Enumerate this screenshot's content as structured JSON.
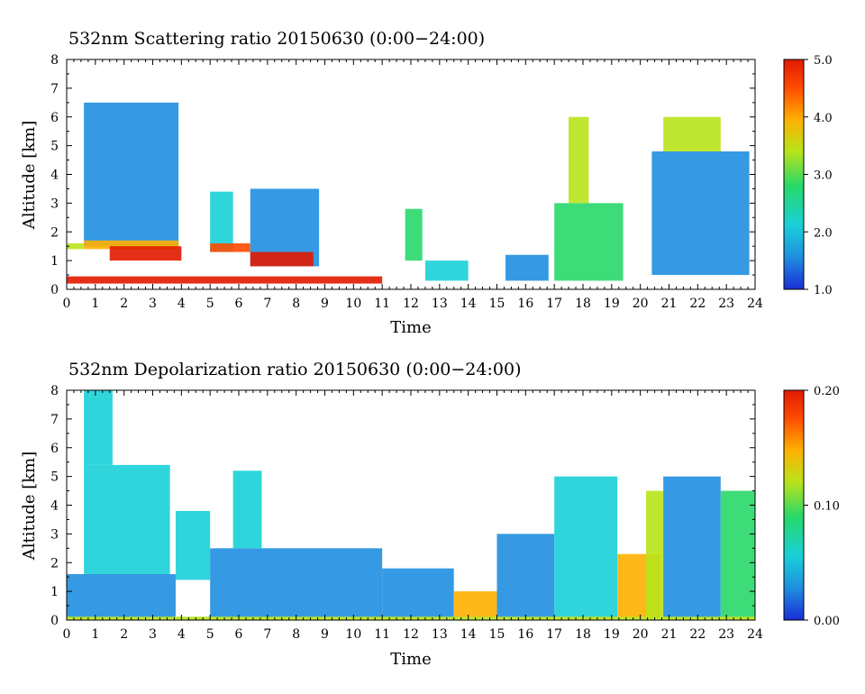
{
  "charts": [
    {
      "id": "scattering",
      "title": "532nm Scattering ratio  20150630 (0:00−24:00)",
      "xlabel": "Time",
      "ylabel": "Altitude [km]",
      "colorbar_ticks": [
        "1.0",
        "2.0",
        "3.0",
        "4.0",
        "5.0"
      ],
      "x_ticks": [
        "0",
        "1",
        "2",
        "3",
        "4",
        "5",
        "6",
        "7",
        "8",
        "9",
        "10",
        "11",
        "12",
        "13",
        "14",
        "15",
        "16",
        "17",
        "18",
        "19",
        "20",
        "21",
        "22",
        "23",
        "24"
      ],
      "y_ticks": [
        "0",
        "1",
        "2",
        "3",
        "4",
        "5",
        "6",
        "7",
        "8"
      ]
    },
    {
      "id": "depolarization",
      "title": "532nm Depolarization ratio  20150630 (0:00−24:00)",
      "xlabel": "Time",
      "ylabel": "Altitude [km]",
      "colorbar_ticks": [
        "0.00",
        "0.10",
        "0.20"
      ],
      "x_ticks": [
        "0",
        "1",
        "2",
        "3",
        "4",
        "5",
        "6",
        "7",
        "8",
        "9",
        "10",
        "11",
        "12",
        "13",
        "14",
        "15",
        "16",
        "17",
        "18",
        "19",
        "20",
        "21",
        "22",
        "23",
        "24"
      ],
      "y_ticks": [
        "0",
        "1",
        "2",
        "3",
        "4",
        "5",
        "6",
        "7",
        "8"
      ]
    }
  ],
  "chart_data": [
    {
      "type": "heatmap",
      "title": "532nm Scattering ratio  20150630 (0:00−24:00)",
      "xlabel": "Time",
      "ylabel": "Altitude [km]",
      "xlim": [
        0,
        24
      ],
      "ylim": [
        0,
        8
      ],
      "colorbar": {
        "min": 1.0,
        "max": 5.0,
        "ticks": [
          1.0,
          2.0,
          3.0,
          4.0,
          5.0
        ]
      },
      "colormap": [
        "#1a2ed6",
        "#1f8fe0",
        "#19d0d8",
        "#28d86a",
        "#b8e31a",
        "#ffb000",
        "#ff4a00",
        "#e21a00"
      ],
      "regions": [
        {
          "t": [
            0.0,
            0.6
          ],
          "z": [
            1.4,
            1.6
          ],
          "value": 3.2
        },
        {
          "t": [
            0.6,
            3.9
          ],
          "z": [
            1.5,
            6.5
          ],
          "value": 1.6
        },
        {
          "t": [
            0.6,
            3.9
          ],
          "z": [
            1.4,
            1.7
          ],
          "value": 3.6
        },
        {
          "t": [
            1.5,
            4.0
          ],
          "z": [
            1.0,
            1.5
          ],
          "value": 4.8
        },
        {
          "t": [
            0.0,
            11.0
          ],
          "z": [
            0.2,
            0.45
          ],
          "value": 4.8
        },
        {
          "t": [
            5.0,
            5.8
          ],
          "z": [
            1.3,
            3.4
          ],
          "value": 2.0
        },
        {
          "t": [
            5.0,
            6.4
          ],
          "z": [
            1.3,
            1.6
          ],
          "value": 4.6
        },
        {
          "t": [
            6.4,
            8.8
          ],
          "z": [
            0.8,
            3.5
          ],
          "value": 1.8
        },
        {
          "t": [
            6.4,
            8.6
          ],
          "z": [
            0.8,
            1.3
          ],
          "value": 4.8
        },
        {
          "t": [
            11.8,
            12.4
          ],
          "z": [
            1.0,
            2.8
          ],
          "value": 2.6
        },
        {
          "t": [
            12.5,
            14.0
          ],
          "z": [
            0.3,
            1.0
          ],
          "value": 2.4
        },
        {
          "t": [
            15.3,
            16.8
          ],
          "z": [
            0.3,
            1.2
          ],
          "value": 1.5
        },
        {
          "t": [
            17.0,
            19.4
          ],
          "z": [
            0.3,
            3.0
          ],
          "value": 2.5
        },
        {
          "t": [
            17.5,
            18.2
          ],
          "z": [
            3.0,
            6.0
          ],
          "value": 3.5
        },
        {
          "t": [
            20.4,
            23.8
          ],
          "z": [
            0.5,
            4.8
          ],
          "value": 1.8
        },
        {
          "t": [
            20.8,
            22.8
          ],
          "z": [
            4.8,
            6.0
          ],
          "value": 3.2
        }
      ]
    },
    {
      "type": "heatmap",
      "title": "532nm Depolarization ratio  20150630 (0:00−24:00)",
      "xlabel": "Time",
      "ylabel": "Altitude [km]",
      "xlim": [
        0,
        24
      ],
      "ylim": [
        0,
        8
      ],
      "colorbar": {
        "min": 0.0,
        "max": 0.2,
        "ticks": [
          0.0,
          0.1,
          0.2
        ]
      },
      "colormap": [
        "#1a2ed6",
        "#1f8fe0",
        "#19d0d8",
        "#28d86a",
        "#b8e31a",
        "#ffb000",
        "#ff4a00",
        "#e21a00"
      ],
      "regions": [
        {
          "t": [
            0.0,
            3.8
          ],
          "z": [
            0.1,
            1.6
          ],
          "value": 0.03
        },
        {
          "t": [
            0.6,
            3.6
          ],
          "z": [
            1.6,
            5.4
          ],
          "value": 0.055
        },
        {
          "t": [
            0.6,
            1.6
          ],
          "z": [
            5.4,
            8.0
          ],
          "value": 0.07
        },
        {
          "t": [
            3.8,
            5.0
          ],
          "z": [
            1.4,
            3.8
          ],
          "value": 0.045
        },
        {
          "t": [
            5.0,
            11.0
          ],
          "z": [
            0.1,
            2.5
          ],
          "value": 0.03
        },
        {
          "t": [
            5.8,
            6.8
          ],
          "z": [
            2.5,
            5.2
          ],
          "value": 0.045
        },
        {
          "t": [
            11.0,
            13.5
          ],
          "z": [
            0.1,
            1.8
          ],
          "value": 0.035
        },
        {
          "t": [
            13.5,
            15.0
          ],
          "z": [
            0.1,
            1.0
          ],
          "value": 0.13
        },
        {
          "t": [
            15.0,
            17.0
          ],
          "z": [
            0.1,
            3.0
          ],
          "value": 0.04
        },
        {
          "t": [
            17.0,
            19.2
          ],
          "z": [
            0.1,
            5.0
          ],
          "value": 0.06
        },
        {
          "t": [
            19.2,
            20.7
          ],
          "z": [
            0.1,
            2.3
          ],
          "value": 0.14
        },
        {
          "t": [
            20.2,
            20.8
          ],
          "z": [
            0.1,
            4.5
          ],
          "value": 0.12
        },
        {
          "t": [
            20.8,
            22.8
          ],
          "z": [
            0.1,
            5.0
          ],
          "value": 0.04
        },
        {
          "t": [
            22.8,
            24.0
          ],
          "z": [
            0.1,
            4.5
          ],
          "value": 0.09
        },
        {
          "t": [
            0.0,
            24.0
          ],
          "z": [
            0.0,
            0.12
          ],
          "value": 0.1
        }
      ]
    }
  ]
}
